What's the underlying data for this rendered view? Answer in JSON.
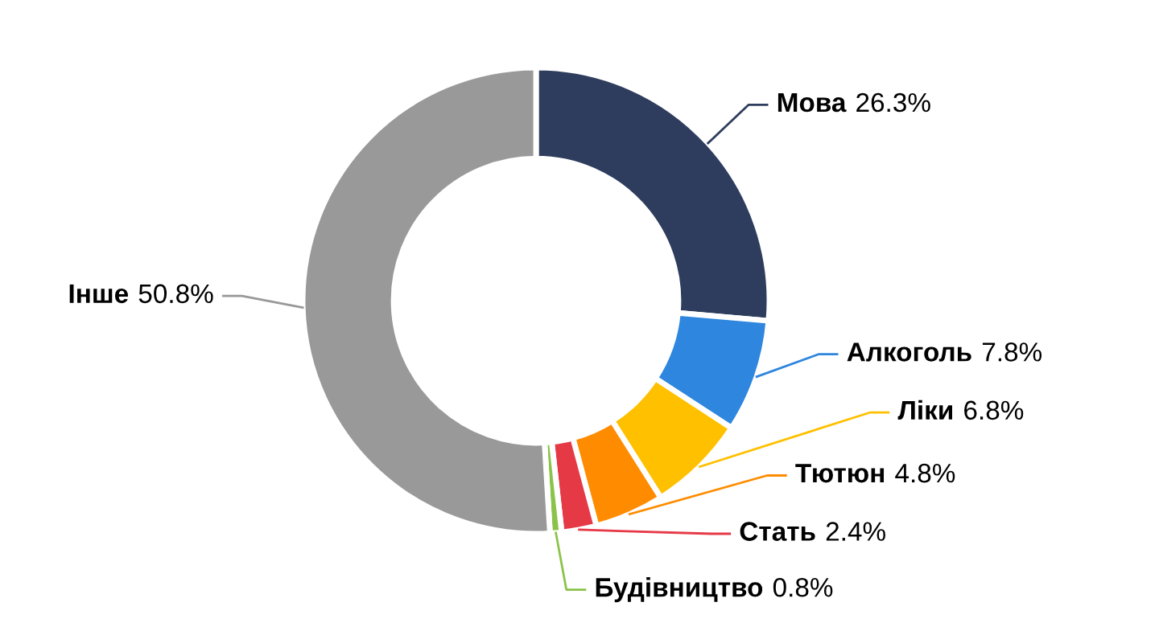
{
  "chart_data": {
    "type": "donut",
    "categories": [
      "Мова",
      "Алкоголь",
      "Ліки",
      "Тютюн",
      "Стать",
      "Будівництво",
      "Інше"
    ],
    "values": [
      26.3,
      7.8,
      6.8,
      4.8,
      2.4,
      0.8,
      50.8
    ],
    "value_labels": [
      "26.3%",
      "7.8%",
      "6.8%",
      "4.8%",
      "2.4%",
      "0.8%",
      "50.8%"
    ],
    "colors": [
      "#2e3d5e",
      "#2e86de",
      "#ffc000",
      "#ff8c00",
      "#e63946",
      "#8bc34a",
      "#999999"
    ]
  }
}
